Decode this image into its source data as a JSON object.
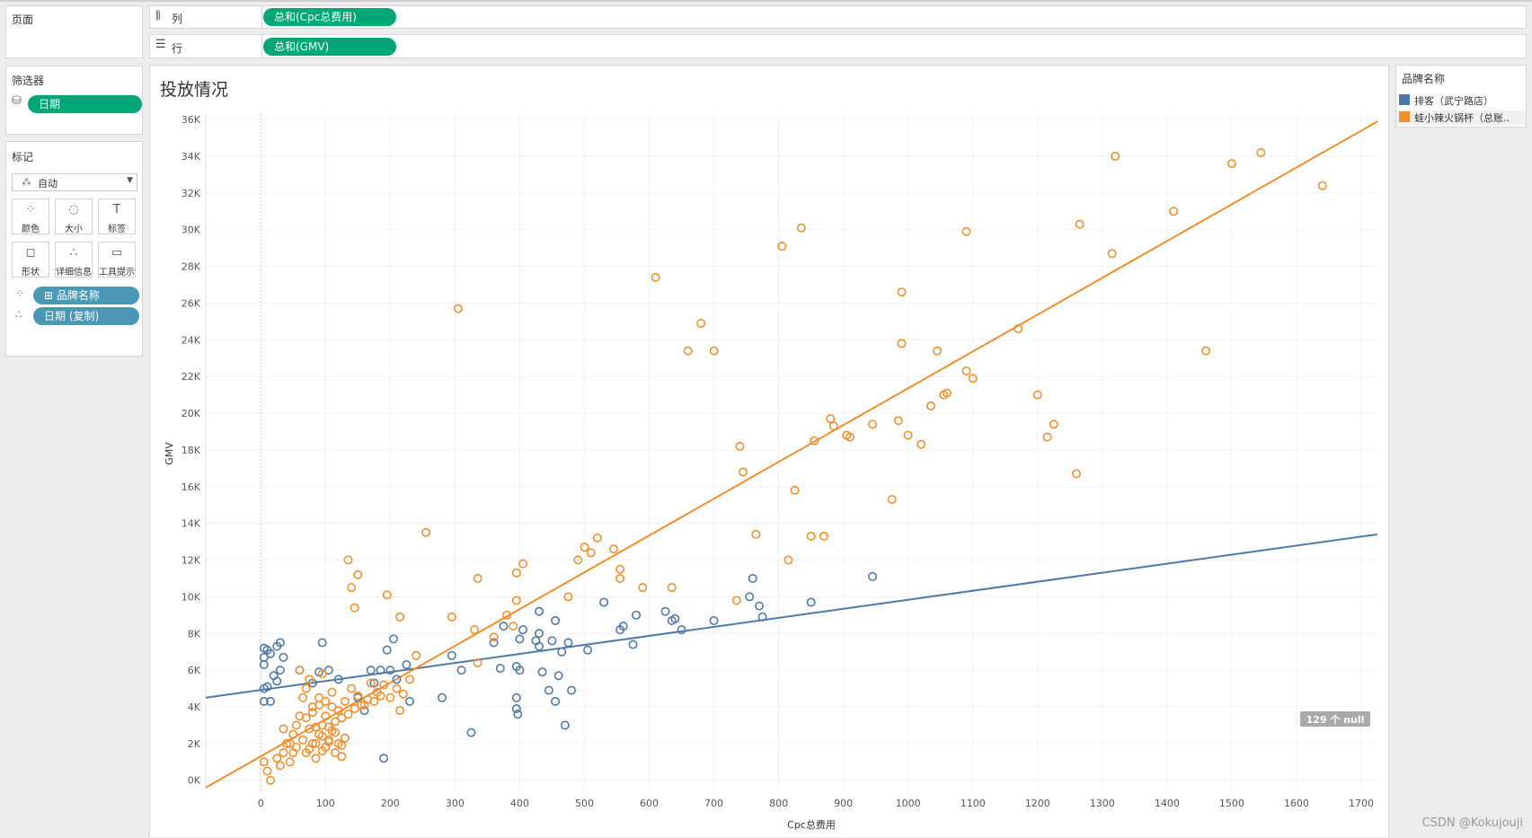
{
  "pages_shelf": {
    "label": "页面"
  },
  "filters": {
    "label": "筛选器",
    "items": [
      "日期"
    ]
  },
  "marks": {
    "label": "标记",
    "type_select": "自动",
    "cards": [
      {
        "icon": "color-dots-icon",
        "glyph": "⁘",
        "label": "颜色"
      },
      {
        "icon": "size-icon",
        "glyph": "◌",
        "label": "大小"
      },
      {
        "icon": "label-icon",
        "glyph": "T",
        "label": "标签"
      },
      {
        "icon": "shape-icon",
        "glyph": "◻",
        "label": "形状"
      },
      {
        "icon": "detail-icon",
        "glyph": "∴",
        "label": "详细信息"
      },
      {
        "icon": "tooltip-icon",
        "glyph": "▭",
        "label": "工具提示"
      }
    ],
    "fields": [
      {
        "icon": "color-dots-icon",
        "label": "⊞ 品牌名称"
      },
      {
        "icon": "detail-icon",
        "label": "日期 (复制)"
      }
    ]
  },
  "columns_shelf": {
    "label": "列",
    "pill": "总和(Cpc总费用)"
  },
  "rows_shelf": {
    "label": "行",
    "pill": "总和(GMV)"
  },
  "legend": {
    "title": "品牌名称",
    "items": [
      {
        "label": "排客（武宁路店）",
        "color": "#4e79a7"
      },
      {
        "label": "蛙小辣火锅杯（总账..",
        "color": "#f28e2b"
      }
    ]
  },
  "null_badge": "129 个 null",
  "watermark": "CSDN @Kokujouji",
  "chart_data": {
    "type": "scatter",
    "title": "投放情况",
    "xlabel": "Cpc总费用",
    "ylabel": "GMV",
    "xlim": [
      -85,
      1725
    ],
    "ylim": [
      -600,
      36300
    ],
    "x_ticks": [
      0,
      100,
      200,
      300,
      400,
      500,
      600,
      700,
      800,
      900,
      1000,
      1100,
      1200,
      1300,
      1400,
      1500,
      1600,
      1700
    ],
    "y_ticks": [
      0,
      2000,
      4000,
      6000,
      8000,
      10000,
      12000,
      14000,
      16000,
      18000,
      20000,
      22000,
      24000,
      26000,
      28000,
      30000,
      32000,
      34000,
      36000
    ],
    "y_tick_labels": [
      "0K",
      "2K",
      "4K",
      "6K",
      "8K",
      "10K",
      "12K",
      "14K",
      "16K",
      "18K",
      "20K",
      "22K",
      "24K",
      "26K",
      "28K",
      "30K",
      "32K",
      "34K",
      "36K"
    ],
    "grid": true,
    "trend_lines": true,
    "series": [
      {
        "name": "排客（武宁路店）",
        "color": "#4e79a7",
        "trend": {
          "x": [
            -85,
            1725
          ],
          "y": [
            4500,
            13400
          ]
        },
        "points": [
          [
            5,
            7200
          ],
          [
            10,
            7100
          ],
          [
            5,
            6700
          ],
          [
            15,
            6900
          ],
          [
            25,
            7300
          ],
          [
            30,
            7500
          ],
          [
            5,
            6300
          ],
          [
            20,
            5700
          ],
          [
            25,
            5400
          ],
          [
            35,
            6700
          ],
          [
            30,
            6000
          ],
          [
            10,
            5100
          ],
          [
            5,
            4300
          ],
          [
            15,
            4300
          ],
          [
            5,
            5000
          ],
          [
            95,
            7500
          ],
          [
            60,
            6000
          ],
          [
            80,
            5300
          ],
          [
            90,
            5900
          ],
          [
            105,
            6000
          ],
          [
            120,
            5500
          ],
          [
            170,
            6000
          ],
          [
            185,
            6000
          ],
          [
            200,
            6000
          ],
          [
            210,
            5500
          ],
          [
            205,
            7700
          ],
          [
            195,
            7100
          ],
          [
            225,
            6300
          ],
          [
            230,
            4300
          ],
          [
            175,
            5300
          ],
          [
            150,
            4500
          ],
          [
            160,
            3800
          ],
          [
            190,
            1200
          ],
          [
            280,
            4500
          ],
          [
            295,
            6800
          ],
          [
            310,
            6000
          ],
          [
            325,
            2600
          ],
          [
            360,
            7500
          ],
          [
            370,
            6100
          ],
          [
            375,
            8400
          ],
          [
            395,
            6200
          ],
          [
            400,
            6000
          ],
          [
            395,
            4500
          ],
          [
            395,
            3900
          ],
          [
            397,
            3600
          ],
          [
            400,
            7700
          ],
          [
            405,
            8200
          ],
          [
            430,
            9200
          ],
          [
            425,
            7600
          ],
          [
            430,
            7300
          ],
          [
            435,
            5900
          ],
          [
            430,
            8000
          ],
          [
            450,
            7600
          ],
          [
            455,
            8700
          ],
          [
            445,
            4900
          ],
          [
            455,
            4300
          ],
          [
            460,
            5700
          ],
          [
            465,
            7000
          ],
          [
            470,
            3000
          ],
          [
            475,
            7500
          ],
          [
            480,
            4900
          ],
          [
            505,
            7100
          ],
          [
            530,
            9700
          ],
          [
            555,
            8200
          ],
          [
            560,
            8400
          ],
          [
            575,
            7400
          ],
          [
            580,
            9000
          ],
          [
            625,
            9200
          ],
          [
            635,
            8700
          ],
          [
            640,
            8800
          ],
          [
            650,
            8200
          ],
          [
            700,
            8700
          ],
          [
            755,
            10000
          ],
          [
            760,
            11000
          ],
          [
            770,
            9500
          ],
          [
            775,
            8900
          ],
          [
            850,
            9700
          ],
          [
            945,
            11100
          ]
        ]
      },
      {
        "name": "蛙小辣火锅杯（总账..",
        "color": "#f28e2b",
        "trend": {
          "x": [
            -85,
            1725
          ],
          "y": [
            -400,
            35900
          ]
        },
        "points": [
          [
            5,
            1000
          ],
          [
            10,
            500
          ],
          [
            15,
            0
          ],
          [
            25,
            1200
          ],
          [
            30,
            800
          ],
          [
            35,
            1500
          ],
          [
            40,
            2000
          ],
          [
            45,
            1000
          ],
          [
            50,
            2500
          ],
          [
            55,
            1800
          ],
          [
            60,
            3500
          ],
          [
            65,
            2200
          ],
          [
            70,
            1500
          ],
          [
            75,
            2800
          ],
          [
            80,
            2000
          ],
          [
            85,
            1200
          ],
          [
            90,
            2500
          ],
          [
            95,
            3000
          ],
          [
            100,
            1800
          ],
          [
            105,
            2200
          ],
          [
            110,
            2700
          ],
          [
            115,
            1500
          ],
          [
            120,
            2000
          ],
          [
            125,
            1300
          ],
          [
            130,
            2300
          ],
          [
            55,
            3000
          ],
          [
            65,
            4500
          ],
          [
            70,
            5000
          ],
          [
            80,
            4000
          ],
          [
            90,
            4500
          ],
          [
            100,
            3500
          ],
          [
            110,
            4800
          ],
          [
            120,
            3800
          ],
          [
            130,
            4300
          ],
          [
            140,
            5000
          ],
          [
            150,
            4600
          ],
          [
            160,
            4100
          ],
          [
            170,
            5300
          ],
          [
            180,
            4800
          ],
          [
            190,
            5200
          ],
          [
            200,
            4500
          ],
          [
            210,
            5000
          ],
          [
            220,
            4700
          ],
          [
            230,
            5500
          ],
          [
            240,
            6800
          ],
          [
            60,
            6000
          ],
          [
            75,
            5500
          ],
          [
            95,
            5800
          ],
          [
            45,
            2000
          ],
          [
            50,
            1500
          ],
          [
            85,
            2000
          ],
          [
            95,
            2400
          ],
          [
            105,
            2100
          ],
          [
            115,
            2600
          ],
          [
            125,
            1900
          ],
          [
            35,
            2800
          ],
          [
            75,
            1700
          ],
          [
            85,
            2900
          ],
          [
            95,
            1600
          ],
          [
            105,
            2900
          ],
          [
            115,
            3200
          ],
          [
            125,
            3400
          ],
          [
            135,
            3600
          ],
          [
            145,
            3900
          ],
          [
            155,
            4100
          ],
          [
            165,
            4400
          ],
          [
            175,
            4300
          ],
          [
            185,
            4600
          ],
          [
            70,
            3400
          ],
          [
            80,
            3700
          ],
          [
            90,
            4100
          ],
          [
            100,
            4300
          ],
          [
            110,
            4000
          ],
          [
            135,
            12000
          ],
          [
            140,
            10500
          ],
          [
            145,
            9400
          ],
          [
            150,
            11200
          ],
          [
            195,
            10100
          ],
          [
            215,
            8900
          ],
          [
            215,
            3800
          ],
          [
            255,
            13500
          ],
          [
            295,
            8900
          ],
          [
            330,
            8200
          ],
          [
            335,
            6400
          ],
          [
            335,
            11000
          ],
          [
            360,
            7800
          ],
          [
            380,
            9000
          ],
          [
            390,
            8400
          ],
          [
            395,
            9800
          ],
          [
            395,
            11300
          ],
          [
            405,
            11800
          ],
          [
            475,
            10000
          ],
          [
            490,
            12000
          ],
          [
            500,
            12700
          ],
          [
            510,
            12400
          ],
          [
            520,
            13200
          ],
          [
            545,
            12600
          ],
          [
            555,
            11500
          ],
          [
            555,
            11000
          ],
          [
            590,
            10500
          ],
          [
            610,
            27400
          ],
          [
            635,
            10500
          ],
          [
            660,
            23400
          ],
          [
            680,
            24900
          ],
          [
            700,
            23400
          ],
          [
            305,
            25700
          ],
          [
            735,
            9800
          ],
          [
            740,
            18200
          ],
          [
            745,
            16800
          ],
          [
            765,
            13400
          ],
          [
            805,
            29100
          ],
          [
            815,
            12000
          ],
          [
            825,
            15800
          ],
          [
            835,
            30100
          ],
          [
            850,
            13300
          ],
          [
            855,
            18500
          ],
          [
            870,
            13300
          ],
          [
            880,
            19700
          ],
          [
            885,
            19300
          ],
          [
            905,
            18800
          ],
          [
            910,
            18700
          ],
          [
            945,
            19400
          ],
          [
            975,
            15300
          ],
          [
            985,
            19600
          ],
          [
            990,
            26600
          ],
          [
            990,
            23800
          ],
          [
            1000,
            18800
          ],
          [
            1020,
            18300
          ],
          [
            1035,
            20400
          ],
          [
            1045,
            23400
          ],
          [
            1055,
            21000
          ],
          [
            1060,
            21100
          ],
          [
            1090,
            22300
          ],
          [
            1090,
            29900
          ],
          [
            1100,
            21900
          ],
          [
            1170,
            24600
          ],
          [
            1200,
            21000
          ],
          [
            1215,
            18700
          ],
          [
            1225,
            19400
          ],
          [
            1260,
            16700
          ],
          [
            1265,
            30300
          ],
          [
            1315,
            28700
          ],
          [
            1320,
            34000
          ],
          [
            1410,
            31000
          ],
          [
            1460,
            23400
          ],
          [
            1500,
            33600
          ],
          [
            1545,
            34200
          ],
          [
            1640,
            32400
          ]
        ]
      }
    ]
  }
}
